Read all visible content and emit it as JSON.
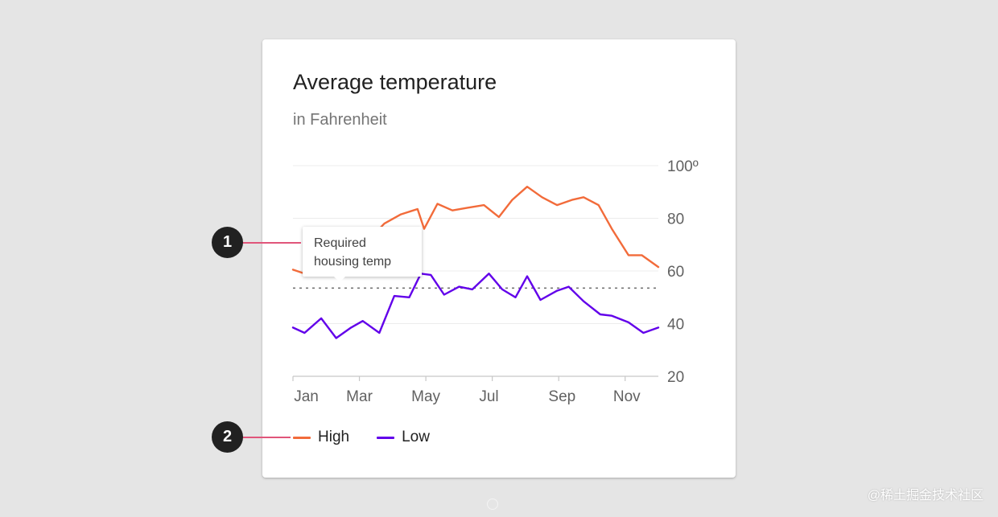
{
  "card": {
    "title": "Average temperature",
    "subtitle": "in Fahrenheit"
  },
  "tooltip": {
    "line1": "Required",
    "line2": "housing temp"
  },
  "callouts": [
    "1",
    "2"
  ],
  "watermark": "@稀土掘金技术社区",
  "colors": {
    "high": "#f26b3a",
    "low": "#6200ea",
    "threshold": "#757575",
    "callout_line": "#e0557a",
    "callout_dot": "#212121"
  },
  "chart_data": {
    "type": "line",
    "title": "Average temperature",
    "subtitle": "in Fahrenheit",
    "ylim": [
      20,
      100
    ],
    "y_ticks": [
      20,
      40,
      60,
      80,
      100
    ],
    "y_tick_labels": [
      "20",
      "40",
      "60",
      "80",
      "100º"
    ],
    "x_ticks": [
      0,
      1,
      2,
      3,
      4,
      5,
      6,
      7,
      8,
      9,
      10,
      11
    ],
    "x_tick_labels": [
      "Jan",
      "Mar",
      "May",
      "Jul",
      "Sep",
      "Nov"
    ],
    "x_tick_label_positions": [
      0.4,
      2.0,
      4.0,
      5.9,
      8.1,
      10.05
    ],
    "grid": "horizontal",
    "legend_position": "bottom-left",
    "threshold": {
      "value": 53.5,
      "label": "Required housing temp",
      "style": "dotted"
    },
    "series": [
      {
        "name": "High",
        "x": [
          0,
          0.35,
          0.9,
          1.3,
          1.8,
          2.3,
          2.75,
          3.25,
          3.75,
          3.95,
          4.35,
          4.8,
          5.25,
          5.75,
          6.2,
          6.6,
          7.05,
          7.5,
          7.95,
          8.4,
          8.75,
          9.2,
          9.6,
          10.1,
          10.5,
          11.0
        ],
        "values": [
          60.5,
          59,
          68,
          66,
          70,
          72,
          78,
          81.5,
          83.5,
          76,
          85.5,
          83,
          84,
          85,
          80.5,
          87,
          92,
          88,
          85,
          87,
          88,
          85,
          76,
          66,
          66,
          61.5
        ]
      },
      {
        "name": "Low",
        "x": [
          0,
          0.35,
          0.85,
          1.3,
          1.75,
          2.1,
          2.6,
          3.05,
          3.5,
          3.85,
          4.15,
          4.55,
          5.0,
          5.4,
          5.9,
          6.3,
          6.7,
          7.05,
          7.45,
          7.95,
          8.3,
          8.75,
          9.25,
          9.6,
          10.1,
          10.55,
          11.0
        ],
        "values": [
          38.5,
          36.5,
          42,
          34.5,
          38.5,
          41,
          36.5,
          50.5,
          50,
          59,
          58.5,
          51,
          54,
          53,
          59,
          53,
          50,
          58,
          49,
          52.5,
          54,
          48.5,
          43.5,
          43,
          40.5,
          36.5,
          38.5
        ]
      }
    ]
  }
}
